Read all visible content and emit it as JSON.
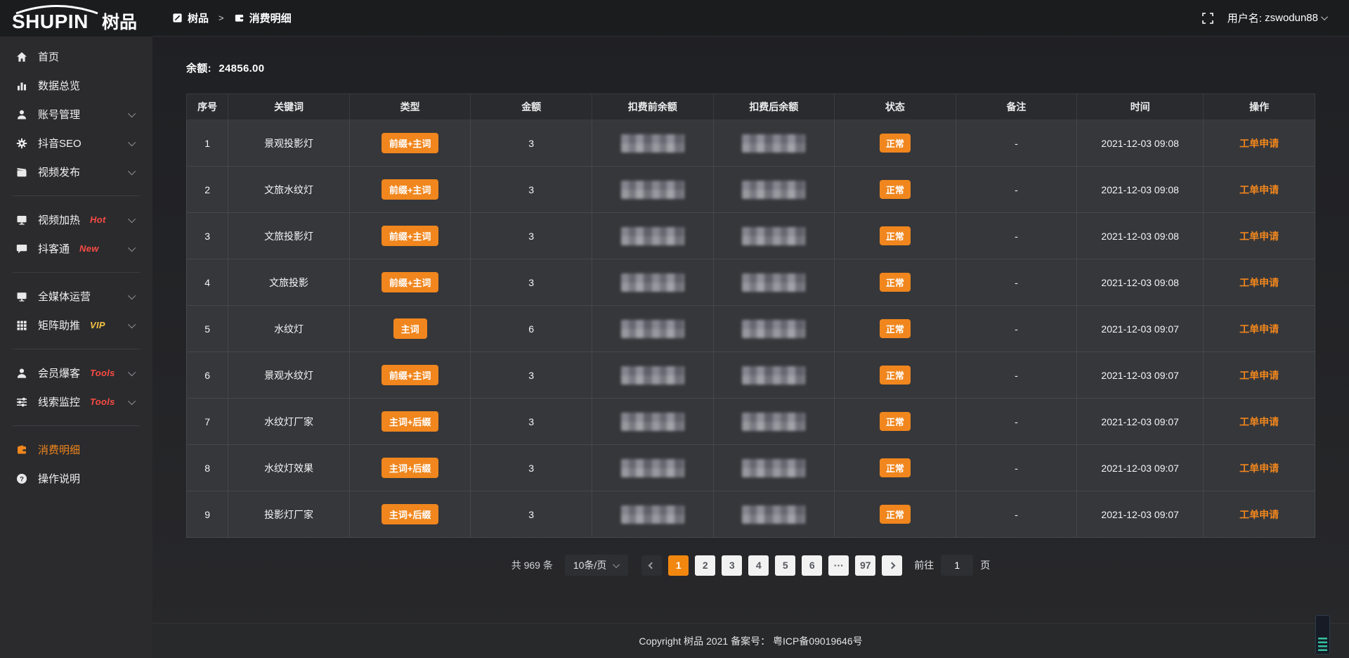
{
  "brand": {
    "logo_en": "SHUPIN",
    "logo_cn": "树品"
  },
  "topbar": {
    "breadcrumb": [
      {
        "label": "树品"
      },
      {
        "label": "消费明细"
      }
    ],
    "separator": ">",
    "username_label": "用户名:",
    "username": "zswodun88"
  },
  "sidebar": {
    "items": [
      {
        "label": "首页",
        "icon": "home-icon"
      },
      {
        "label": "数据总览",
        "icon": "bar-chart-icon"
      },
      {
        "label": "账号管理",
        "icon": "user-icon",
        "chevron": true
      },
      {
        "label": "抖音SEO",
        "icon": "gear-icon",
        "chevron": true
      },
      {
        "label": "视频发布",
        "icon": "video-publish-icon",
        "chevron": true
      },
      {
        "divider": true
      },
      {
        "label": "视频加热",
        "icon": "screen-icon",
        "chevron": true,
        "badge": "Hot",
        "badge_color": "#fa4b44"
      },
      {
        "label": "抖客通",
        "icon": "chat-icon",
        "chevron": true,
        "badge": "New",
        "badge_color": "#fa4b44"
      },
      {
        "divider": true
      },
      {
        "label": "全媒体运营",
        "icon": "monitor-icon",
        "chevron": true
      },
      {
        "label": "矩阵助推",
        "icon": "grid-icon",
        "chevron": true,
        "badge": "VIP",
        "badge_color": "#f6c343"
      },
      {
        "divider": true
      },
      {
        "label": "会员爆客",
        "icon": "member-icon",
        "chevron": true,
        "badge": "Tools",
        "badge_color": "#fa4b44"
      },
      {
        "label": "线索监控",
        "icon": "sliders-icon",
        "chevron": true,
        "badge": "Tools",
        "badge_color": "#fa4b44"
      },
      {
        "divider": true
      },
      {
        "label": "消费明细",
        "icon": "wallet-icon",
        "active": true
      },
      {
        "label": "操作说明",
        "icon": "question-icon"
      }
    ]
  },
  "balance": {
    "label": "余额:",
    "value": "24856.00"
  },
  "table": {
    "columns": [
      "序号",
      "关键词",
      "类型",
      "金额",
      "扣费前余额",
      "扣费后余额",
      "状态",
      "备注",
      "时间",
      "操作"
    ],
    "rows": [
      {
        "no": "1",
        "keyword": "景观投影灯",
        "type": "前缀+主词",
        "amount": "3",
        "balance_before_masked": true,
        "balance_after_masked": true,
        "status": "正常",
        "remark": "-",
        "time": "2021-12-03 09:08",
        "action": "工单申请"
      },
      {
        "no": "2",
        "keyword": "文旅水纹灯",
        "type": "前缀+主词",
        "amount": "3",
        "balance_before_masked": true,
        "balance_after_masked": true,
        "status": "正常",
        "remark": "-",
        "time": "2021-12-03 09:08",
        "action": "工单申请"
      },
      {
        "no": "3",
        "keyword": "文旅投影灯",
        "type": "前缀+主词",
        "amount": "3",
        "balance_before_masked": true,
        "balance_after_masked": true,
        "status": "正常",
        "remark": "-",
        "time": "2021-12-03 09:08",
        "action": "工单申请"
      },
      {
        "no": "4",
        "keyword": "文旅投影",
        "type": "前缀+主词",
        "amount": "3",
        "balance_before_masked": true,
        "balance_after_masked": true,
        "status": "正常",
        "remark": "-",
        "time": "2021-12-03 09:08",
        "action": "工单申请"
      },
      {
        "no": "5",
        "keyword": "水纹灯",
        "type": "主词",
        "amount": "6",
        "balance_before_masked": true,
        "balance_after_masked": true,
        "status": "正常",
        "remark": "-",
        "time": "2021-12-03 09:07",
        "action": "工单申请"
      },
      {
        "no": "6",
        "keyword": "景观水纹灯",
        "type": "前缀+主词",
        "amount": "3",
        "balance_before_masked": true,
        "balance_after_masked": true,
        "status": "正常",
        "remark": "-",
        "time": "2021-12-03 09:07",
        "action": "工单申请"
      },
      {
        "no": "7",
        "keyword": "水纹灯厂家",
        "type": "主词+后缀",
        "amount": "3",
        "balance_before_masked": true,
        "balance_after_masked": true,
        "status": "正常",
        "remark": "-",
        "time": "2021-12-03 09:07",
        "action": "工单申请"
      },
      {
        "no": "8",
        "keyword": "水纹灯效果",
        "type": "主词+后缀",
        "amount": "3",
        "balance_before_masked": true,
        "balance_after_masked": true,
        "status": "正常",
        "remark": "-",
        "time": "2021-12-03 09:07",
        "action": "工单申请"
      },
      {
        "no": "9",
        "keyword": "投影灯厂家",
        "type": "主词+后缀",
        "amount": "3",
        "balance_before_masked": true,
        "balance_after_masked": true,
        "status": "正常",
        "remark": "-",
        "time": "2021-12-03 09:07",
        "action": "工单申请"
      }
    ]
  },
  "pagination": {
    "total": "共 969 条",
    "page_size": "10条/页",
    "pages": [
      "1",
      "2",
      "3",
      "4",
      "5",
      "6",
      "···",
      "97"
    ],
    "active": "1",
    "goto_label": "前往",
    "goto_value": "1",
    "goto_unit": "页"
  },
  "footer": {
    "copyright": "Copyright 树品 2021 备案号： 粤ICP备09019646号"
  },
  "colors": {
    "accent": "#f0861d",
    "sidebar_bg": "#2b2b2d",
    "header_bg": "#1b1c1e",
    "row_bg": "#36373b",
    "badge_red": "#fa4b44",
    "badge_yellow": "#f6c343"
  }
}
